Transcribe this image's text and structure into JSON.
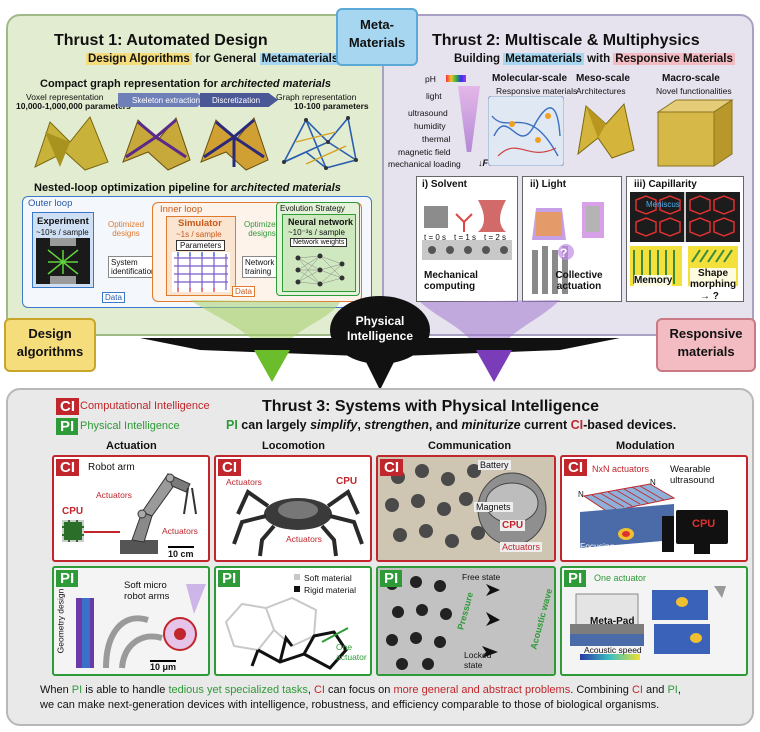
{
  "colors": {
    "ci": "#c0262b",
    "pi": "#2f9a38",
    "thrust1_bg": "#e2ecd0",
    "thrust2_bg": "#e6e3ef",
    "thrust3_bg": "#e9e9e9",
    "center": "#111111"
  },
  "center": {
    "meta_materials": "Meta-\nMaterials",
    "physical_intelligence": "Physical\nIntelligence"
  },
  "side_labels": {
    "design": "Design\nalgorithms",
    "responsive": "Responsive\nmaterials"
  },
  "thrust1": {
    "title": "Thrust 1: Automated Design",
    "subtitle_pre": "Design Algorithms",
    "subtitle_mid": " for General ",
    "subtitle_post": "Metamaterials",
    "graph_heading": "Compact graph representation for ",
    "graph_heading_ital": "architected materials",
    "voxel_label": "Voxel representation",
    "voxel_params": "10,000-1,000,000 parameters",
    "step1": "Skeleton extraction",
    "step2": "Discretization",
    "graph_label": "Graph representation",
    "graph_params": "10-100 parameters",
    "loop_heading": "Nested-loop optimization pipeline for ",
    "loop_heading_ital": "architected materials",
    "outer_loop": "Outer loop",
    "inner_loop": "Inner loop",
    "evolution": "Evolution Strategy",
    "experiment": "Experiment",
    "experiment_time": "~10³s / sample",
    "simulator": "Simulator",
    "simulator_time": "~1s / sample",
    "neural": "Neural network",
    "neural_time": "~10⁻³s / sample",
    "parameters": "Parameters",
    "network_weights": "Network weights",
    "optimized_designs_1": "Optimized\ndesigns",
    "optimized_designs_2": "Optimized\ndesigns",
    "system_id": "System\nidentification",
    "network_training": "Network\ntraining",
    "data_1": "Data",
    "data_2": "Data"
  },
  "thrust2": {
    "title": "Thrust 2: Multiscale & Multiphysics",
    "sub_pre": "Building ",
    "sub_meta": "Metamaterials",
    "sub_mid": " with ",
    "sub_resp": "Responsive Materials",
    "stimuli": [
      "pH",
      "light",
      "ultrasound",
      "humidity",
      "thermal",
      "magnetic field",
      "mechanical loading"
    ],
    "force": "F",
    "mol_title": "Molecular-scale",
    "mol_sub": "Responsive materials",
    "meso_title": "Meso-scale",
    "meso_sub": "Architectures",
    "macro_title": "Macro-scale",
    "macro_sub": "Novel functionalities",
    "solvent": "i)   Solvent",
    "light": "ii)   Light",
    "capillarity": "iii)  Capillarity",
    "times": [
      "t = 0 s",
      "t = 1 s",
      "t = 2 s"
    ],
    "mech_computing": "Mechanical\ncomputing",
    "collective": "Collective\nactuation",
    "memory": "Memory",
    "shape_morphing": "Shape\nmorphing",
    "meniscus": "Meniscus",
    "arrow_q": "→ ?",
    "q": "?"
  },
  "thrust3": {
    "title": "Thrust 3: Systems with Physical Intelligence",
    "ci_badge": "CI",
    "pi_badge": "PI",
    "ci_full": "Computational Intelligence",
    "pi_full": "Physical Intelligence",
    "tag_pi": "PI",
    "tag_text1": " can largely ",
    "tag_simplify": "simplify",
    "tag_comma1": ", ",
    "tag_strengthen": "strengthen",
    "tag_and": ", and ",
    "tag_miniturize": "miniturize",
    "tag_text2": " current ",
    "tag_ci": "CI",
    "tag_text3": "-based devices.",
    "columns": [
      "Actuation",
      "Locomotion",
      "Communication",
      "Modulation"
    ],
    "act_ci": {
      "robot_arm": "Robot arm",
      "actuators_1": "Actuators",
      "actuators_2": "Actuators",
      "cpu": "CPU",
      "scale": "10 cm"
    },
    "loc_ci": {
      "actuators_1": "Actuators",
      "actuators_2": "Actuators",
      "cpu": "CPU"
    },
    "com_ci": {
      "battery": "Battery",
      "magnets": "Magnets",
      "cpu": "CPU",
      "actuators": "Actuators"
    },
    "mod_ci": {
      "nxn": "NxN actuators",
      "wearable": "Wearable\nultrasound",
      "n1": "N",
      "n2": "N",
      "focusing": "Focusing",
      "cpu": "CPU"
    },
    "act_pi": {
      "soft_micro": "Soft micro\nrobot arms",
      "geometry": "Geometry design",
      "scale": "10 μm"
    },
    "loc_pi": {
      "soft": "Soft material",
      "rigid": "Rigid material",
      "one_actuator": "One\nactuator"
    },
    "com_pi": {
      "free": "Free state",
      "locked": "Locked\nstate",
      "pressure": "Pressure",
      "acoustic": "Acoustic wave"
    },
    "mod_pi": {
      "one_actuator": "One actuator",
      "metapad": "Meta-Pad",
      "acoustic_speed": "Acoustic speed"
    },
    "footer_1": "When ",
    "footer_pi1": "PI",
    "footer_2": " is able to handle ",
    "footer_tedious": "tedious yet specialized tasks",
    "footer_3": ", ",
    "footer_ci1": "CI",
    "footer_4": " can focus on ",
    "footer_general": "more general and abstract problems",
    "footer_5": ". Combining ",
    "footer_ci2": "CI",
    "footer_6": " and ",
    "footer_pi2": "PI",
    "footer_7": ",",
    "footer_line2": "we can make next-generation devices with intelligence, robustness, and efficiency comparable to those of biological organisms."
  }
}
